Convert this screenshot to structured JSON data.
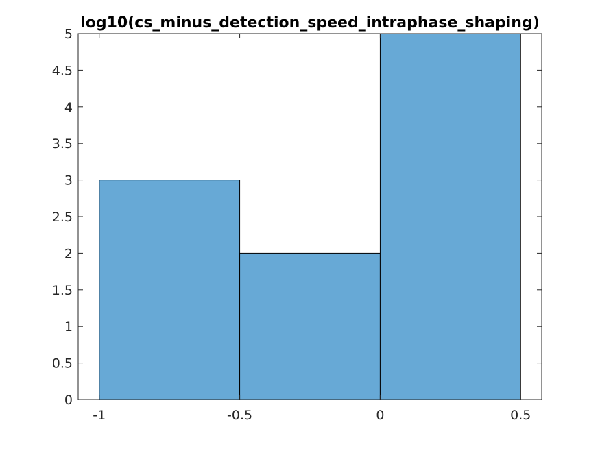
{
  "chart_data": {
    "type": "bar",
    "title": "log10(cs_minus_detection_speed_intraphase_shaping)",
    "xlabel": "",
    "ylabel": "",
    "bins": [
      {
        "x_start": -1.0,
        "x_end": -0.5,
        "count": 3
      },
      {
        "x_start": -0.5,
        "x_end": 0.0,
        "count": 2
      },
      {
        "x_start": 0.0,
        "x_end": 0.5,
        "count": 5
      }
    ],
    "xlim": [
      -1.075,
      0.575
    ],
    "ylim": [
      0,
      5
    ],
    "xticks": [
      -1,
      -0.5,
      0,
      0.5
    ],
    "xtick_labels": [
      "-1",
      "-0.5",
      "0",
      "0.5"
    ],
    "yticks": [
      0,
      0.5,
      1,
      1.5,
      2,
      2.5,
      3,
      3.5,
      4,
      4.5,
      5
    ],
    "ytick_labels": [
      "0",
      "0.5",
      "1",
      "1.5",
      "2",
      "2.5",
      "3",
      "3.5",
      "4",
      "4.5",
      "5"
    ],
    "bar_color": "#67a9d6",
    "edge_color": "#000000",
    "axis_color": "#262626",
    "grid": false,
    "box": true
  }
}
